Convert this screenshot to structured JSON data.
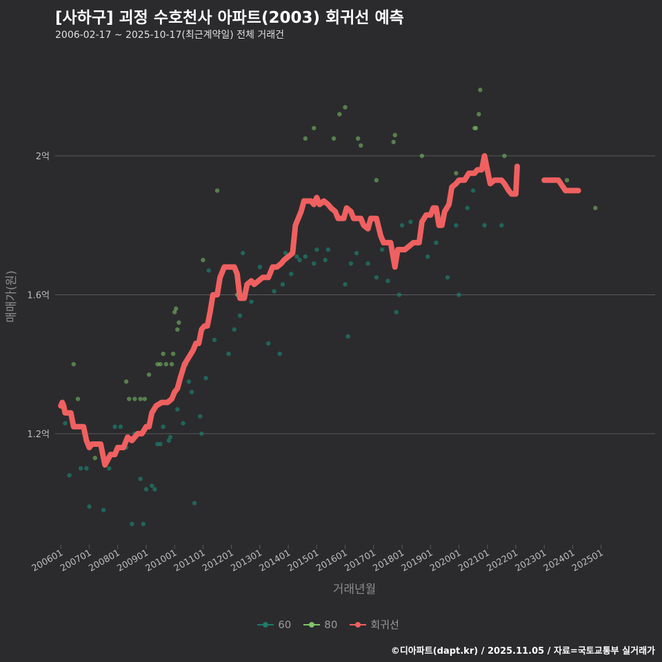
{
  "title": "[사하구] 괴정 수호천사 아파트(2003) 회귀선 예측",
  "subtitle": "2006-02-17 ~ 2025-10-17(최근계약일) 전체 거래건",
  "caption": "©디아파트(dapt.kr) / 2025.11.05 / 자료=국토교통부 실거래가",
  "colors": {
    "background": "#2b2b2d",
    "grid": "#5a5a5e",
    "s60": "#1f7a6a",
    "s80": "#7ec46a",
    "regression": "#f06060",
    "text": "#bdbdbd"
  },
  "chart_data": {
    "type": "scatter",
    "title": "[사하구] 괴정 수호천사 아파트(2003) 회귀선 예측",
    "xlabel": "거래년월",
    "ylabel": "매매가(원)",
    "x_range": [
      2005.8,
      2026.9
    ],
    "y_range": [
      0.88,
      2.3
    ],
    "x_ticks": [
      {
        "x": 2006,
        "label": "200601"
      },
      {
        "x": 2007,
        "label": "200701"
      },
      {
        "x": 2008,
        "label": "200801"
      },
      {
        "x": 2009,
        "label": "200901"
      },
      {
        "x": 2010,
        "label": "201001"
      },
      {
        "x": 2011,
        "label": "201101"
      },
      {
        "x": 2012,
        "label": "201201"
      },
      {
        "x": 2013,
        "label": "201301"
      },
      {
        "x": 2014,
        "label": "201401"
      },
      {
        "x": 2015,
        "label": "201501"
      },
      {
        "x": 2016,
        "label": "201601"
      },
      {
        "x": 2017,
        "label": "201701"
      },
      {
        "x": 2018,
        "label": "201801"
      },
      {
        "x": 2019,
        "label": "201901"
      },
      {
        "x": 2020,
        "label": "202001"
      },
      {
        "x": 2021,
        "label": "202101"
      },
      {
        "x": 2022,
        "label": "202201"
      },
      {
        "x": 2023,
        "label": "202301"
      },
      {
        "x": 2024,
        "label": "202401"
      },
      {
        "x": 2025,
        "label": "202501"
      }
    ],
    "y_ticks": [
      {
        "y": 1.2,
        "label": "1.2억"
      },
      {
        "y": 1.6,
        "label": "1.6억"
      },
      {
        "y": 2.0,
        "label": "2억"
      }
    ],
    "legend": [
      "60",
      "80",
      "회귀선"
    ],
    "series": [
      {
        "name": "60",
        "points": [
          [
            2006.1,
            1.27
          ],
          [
            2006.15,
            1.23
          ],
          [
            2006.3,
            1.08
          ],
          [
            2006.7,
            1.1
          ],
          [
            2006.9,
            1.1
          ],
          [
            2007.0,
            0.99
          ],
          [
            2007.5,
            0.98
          ],
          [
            2007.7,
            1.1
          ],
          [
            2007.9,
            1.22
          ],
          [
            2008.1,
            1.22
          ],
          [
            2008.3,
            1.16
          ],
          [
            2008.6,
            1.2
          ],
          [
            2008.8,
            1.07
          ],
          [
            2008.5,
            0.94
          ],
          [
            2008.9,
            0.94
          ],
          [
            2009.0,
            1.04
          ],
          [
            2009.2,
            1.05
          ],
          [
            2009.3,
            1.04
          ],
          [
            2009.4,
            1.17
          ],
          [
            2009.5,
            1.17
          ],
          [
            2009.6,
            1.22
          ],
          [
            2009.8,
            1.18
          ],
          [
            2009.85,
            1.19
          ],
          [
            2010.1,
            1.27
          ],
          [
            2010.3,
            1.23
          ],
          [
            2010.5,
            1.35
          ],
          [
            2010.6,
            1.32
          ],
          [
            2010.7,
            1.0
          ],
          [
            2010.9,
            1.25
          ],
          [
            2010.95,
            1.2
          ],
          [
            2011.1,
            1.36
          ],
          [
            2011.2,
            1.67
          ],
          [
            2011.4,
            1.47
          ],
          [
            2011.9,
            1.43
          ],
          [
            2012.1,
            1.5
          ],
          [
            2012.3,
            1.54
          ],
          [
            2012.4,
            1.72
          ],
          [
            2012.7,
            1.58
          ],
          [
            2013.0,
            1.68
          ],
          [
            2013.3,
            1.46
          ],
          [
            2013.5,
            1.61
          ],
          [
            2013.7,
            1.43
          ],
          [
            2013.8,
            1.63
          ],
          [
            2013.9,
            1.72
          ],
          [
            2014.1,
            1.66
          ],
          [
            2014.3,
            1.71
          ],
          [
            2014.4,
            1.7
          ],
          [
            2014.6,
            1.71
          ],
          [
            2014.9,
            1.69
          ],
          [
            2015.0,
            1.73
          ],
          [
            2015.3,
            1.7
          ],
          [
            2015.4,
            1.73
          ],
          [
            2016.0,
            1.63
          ],
          [
            2016.1,
            1.48
          ],
          [
            2016.2,
            1.69
          ],
          [
            2016.4,
            1.72
          ],
          [
            2016.8,
            1.69
          ],
          [
            2017.1,
            1.65
          ],
          [
            2017.3,
            1.73
          ],
          [
            2017.5,
            1.64
          ],
          [
            2017.8,
            1.55
          ],
          [
            2017.9,
            1.6
          ],
          [
            2018.0,
            1.8
          ],
          [
            2018.3,
            1.81
          ],
          [
            2018.9,
            1.71
          ],
          [
            2019.2,
            1.75
          ],
          [
            2019.6,
            1.65
          ],
          [
            2019.9,
            1.8
          ],
          [
            2020.0,
            1.6
          ],
          [
            2020.3,
            1.85
          ],
          [
            2020.5,
            1.9
          ],
          [
            2020.9,
            1.8
          ],
          [
            2021.5,
            1.8
          ]
        ]
      },
      {
        "name": "80",
        "points": [
          [
            2006.05,
            1.28
          ],
          [
            2006.45,
            1.4
          ],
          [
            2006.6,
            1.3
          ],
          [
            2007.2,
            1.13
          ],
          [
            2008.3,
            1.35
          ],
          [
            2008.4,
            1.3
          ],
          [
            2008.6,
            1.3
          ],
          [
            2008.8,
            1.3
          ],
          [
            2008.95,
            1.3
          ],
          [
            2009.1,
            1.37
          ],
          [
            2009.4,
            1.4
          ],
          [
            2009.5,
            1.4
          ],
          [
            2009.6,
            1.43
          ],
          [
            2009.7,
            1.4
          ],
          [
            2009.9,
            1.4
          ],
          [
            2009.95,
            1.43
          ],
          [
            2010.0,
            1.55
          ],
          [
            2010.05,
            1.56
          ],
          [
            2010.1,
            1.5
          ],
          [
            2010.15,
            1.52
          ],
          [
            2010.4,
            1.4
          ],
          [
            2011.0,
            1.7
          ],
          [
            2011.5,
            1.9
          ],
          [
            2012.2,
            1.6
          ],
          [
            2014.6,
            2.05
          ],
          [
            2014.9,
            2.08
          ],
          [
            2015.6,
            2.05
          ],
          [
            2015.8,
            2.12
          ],
          [
            2016.0,
            2.14
          ],
          [
            2016.45,
            2.05
          ],
          [
            2016.55,
            2.03
          ],
          [
            2017.1,
            1.93
          ],
          [
            2017.7,
            2.04
          ],
          [
            2017.75,
            2.06
          ],
          [
            2018.7,
            2.0
          ],
          [
            2019.9,
            1.95
          ],
          [
            2020.55,
            2.08
          ],
          [
            2020.6,
            2.08
          ],
          [
            2020.7,
            2.12
          ],
          [
            2020.75,
            2.19
          ],
          [
            2021.6,
            2.0
          ],
          [
            2023.8,
            1.93
          ],
          [
            2024.8,
            1.85
          ]
        ]
      },
      {
        "name": "회귀선",
        "segments": [
          [
            [
              2006.0,
              1.28
            ],
            [
              2006.05,
              1.29
            ],
            [
              2006.1,
              1.28
            ],
            [
              2006.15,
              1.26
            ],
            [
              2006.35,
              1.26
            ],
            [
              2006.45,
              1.22
            ],
            [
              2006.8,
              1.22
            ],
            [
              2006.9,
              1.18
            ],
            [
              2007.0,
              1.16
            ],
            [
              2007.1,
              1.17
            ],
            [
              2007.4,
              1.17
            ],
            [
              2007.55,
              1.11
            ],
            [
              2007.75,
              1.14
            ],
            [
              2007.9,
              1.14
            ],
            [
              2008.0,
              1.16
            ],
            [
              2008.2,
              1.16
            ],
            [
              2008.35,
              1.19
            ],
            [
              2008.5,
              1.18
            ],
            [
              2008.7,
              1.2
            ],
            [
              2008.85,
              1.2
            ],
            [
              2009.0,
              1.22
            ],
            [
              2009.1,
              1.22
            ],
            [
              2009.2,
              1.26
            ],
            [
              2009.35,
              1.28
            ],
            [
              2009.55,
              1.29
            ],
            [
              2009.75,
              1.29
            ],
            [
              2009.9,
              1.3
            ],
            [
              2010.0,
              1.32
            ],
            [
              2010.1,
              1.33
            ],
            [
              2010.2,
              1.36
            ],
            [
              2010.35,
              1.4
            ],
            [
              2010.5,
              1.42
            ],
            [
              2010.65,
              1.44
            ],
            [
              2010.75,
              1.46
            ],
            [
              2010.85,
              1.46
            ],
            [
              2010.95,
              1.5
            ],
            [
              2011.05,
              1.51
            ],
            [
              2011.15,
              1.51
            ],
            [
              2011.25,
              1.55
            ],
            [
              2011.35,
              1.6
            ],
            [
              2011.5,
              1.6
            ],
            [
              2011.6,
              1.65
            ],
            [
              2011.75,
              1.68
            ],
            [
              2012.1,
              1.68
            ],
            [
              2012.2,
              1.66
            ],
            [
              2012.3,
              1.59
            ],
            [
              2012.45,
              1.59
            ],
            [
              2012.55,
              1.63
            ],
            [
              2012.7,
              1.64
            ],
            [
              2012.8,
              1.63
            ],
            [
              2012.95,
              1.64
            ],
            [
              2013.1,
              1.65
            ],
            [
              2013.3,
              1.65
            ],
            [
              2013.45,
              1.68
            ],
            [
              2013.6,
              1.68
            ],
            [
              2013.75,
              1.69
            ],
            [
              2013.85,
              1.7
            ],
            [
              2014.0,
              1.71
            ],
            [
              2014.15,
              1.72
            ],
            [
              2014.25,
              1.8
            ],
            [
              2014.35,
              1.82
            ],
            [
              2014.45,
              1.84
            ],
            [
              2014.55,
              1.87
            ],
            [
              2014.8,
              1.87
            ],
            [
              2014.9,
              1.86
            ],
            [
              2015.0,
              1.88
            ],
            [
              2015.1,
              1.86
            ],
            [
              2015.25,
              1.87
            ],
            [
              2015.4,
              1.86
            ],
            [
              2015.5,
              1.85
            ],
            [
              2015.65,
              1.84
            ],
            [
              2015.75,
              1.82
            ],
            [
              2015.95,
              1.82
            ],
            [
              2016.05,
              1.85
            ],
            [
              2016.2,
              1.84
            ],
            [
              2016.3,
              1.82
            ],
            [
              2016.55,
              1.82
            ],
            [
              2016.65,
              1.8
            ],
            [
              2016.8,
              1.79
            ],
            [
              2016.9,
              1.82
            ],
            [
              2017.1,
              1.82
            ],
            [
              2017.25,
              1.77
            ],
            [
              2017.35,
              1.75
            ],
            [
              2017.6,
              1.75
            ],
            [
              2017.75,
              1.68
            ],
            [
              2017.85,
              1.73
            ],
            [
              2018.1,
              1.73
            ],
            [
              2018.25,
              1.74
            ],
            [
              2018.4,
              1.75
            ],
            [
              2018.6,
              1.75
            ],
            [
              2018.7,
              1.81
            ],
            [
              2018.85,
              1.83
            ],
            [
              2019.0,
              1.83
            ],
            [
              2019.1,
              1.85
            ],
            [
              2019.2,
              1.85
            ],
            [
              2019.3,
              1.8
            ],
            [
              2019.4,
              1.8
            ],
            [
              2019.5,
              1.84
            ],
            [
              2019.65,
              1.86
            ],
            [
              2019.75,
              1.91
            ],
            [
              2019.9,
              1.92
            ],
            [
              2020.0,
              1.93
            ],
            [
              2020.2,
              1.93
            ],
            [
              2020.35,
              1.95
            ],
            [
              2020.55,
              1.95
            ],
            [
              2020.65,
              1.96
            ],
            [
              2020.8,
              1.96
            ],
            [
              2020.9,
              2.0
            ],
            [
              2021.0,
              1.96
            ],
            [
              2021.1,
              1.92
            ],
            [
              2021.25,
              1.93
            ],
            [
              2021.5,
              1.93
            ],
            [
              2021.6,
              1.92
            ],
            [
              2021.75,
              1.9
            ],
            [
              2021.85,
              1.89
            ],
            [
              2022.0,
              1.89
            ],
            [
              2022.05,
              1.97
            ]
          ],
          [
            [
              2023.0,
              1.93
            ],
            [
              2023.5,
              1.93
            ],
            [
              2023.75,
              1.9
            ],
            [
              2024.2,
              1.9
            ]
          ]
        ]
      }
    ]
  }
}
